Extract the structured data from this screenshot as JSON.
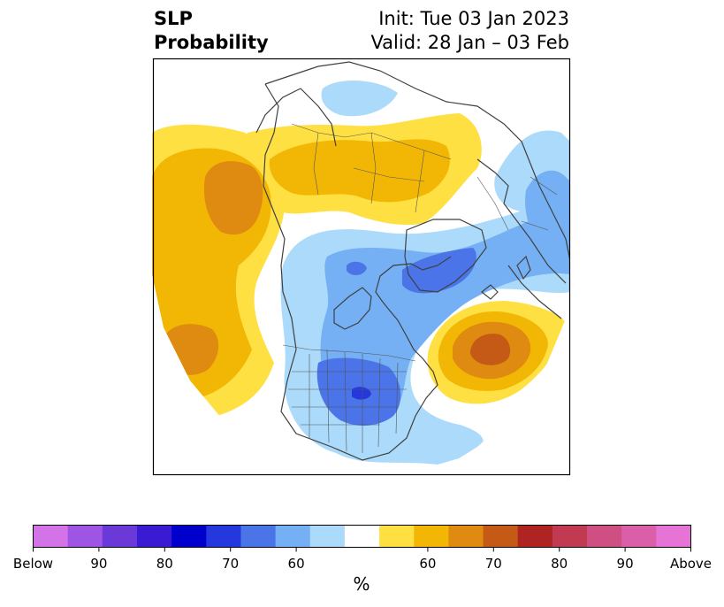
{
  "header": {
    "title_line1": "SLP",
    "title_line2": "Probability",
    "init_line": "Init: Tue 03 Jan 2023",
    "valid_line": "Valid: 28 Jan – 03 Feb"
  },
  "colorbar": {
    "unit": "%",
    "tick_labels": [
      "Below",
      "90",
      "80",
      "70",
      "60",
      "60",
      "70",
      "80",
      "90",
      "Above"
    ],
    "colors": [
      "#d473e8",
      "#9e55e3",
      "#6a39d8",
      "#3a1ad3",
      "#0000cd",
      "#2438de",
      "#4a74e8",
      "#74b0f3",
      "#abdafb",
      "#ffffff",
      "#ffe043",
      "#f2b705",
      "#df8a10",
      "#c45a16",
      "#b02323",
      "#c23a52",
      "#d04f82",
      "#db5fa8",
      "#e673d6"
    ]
  },
  "map": {
    "projection": "north-polar-stereographic",
    "variable": "sea-level-pressure tercile probability"
  }
}
